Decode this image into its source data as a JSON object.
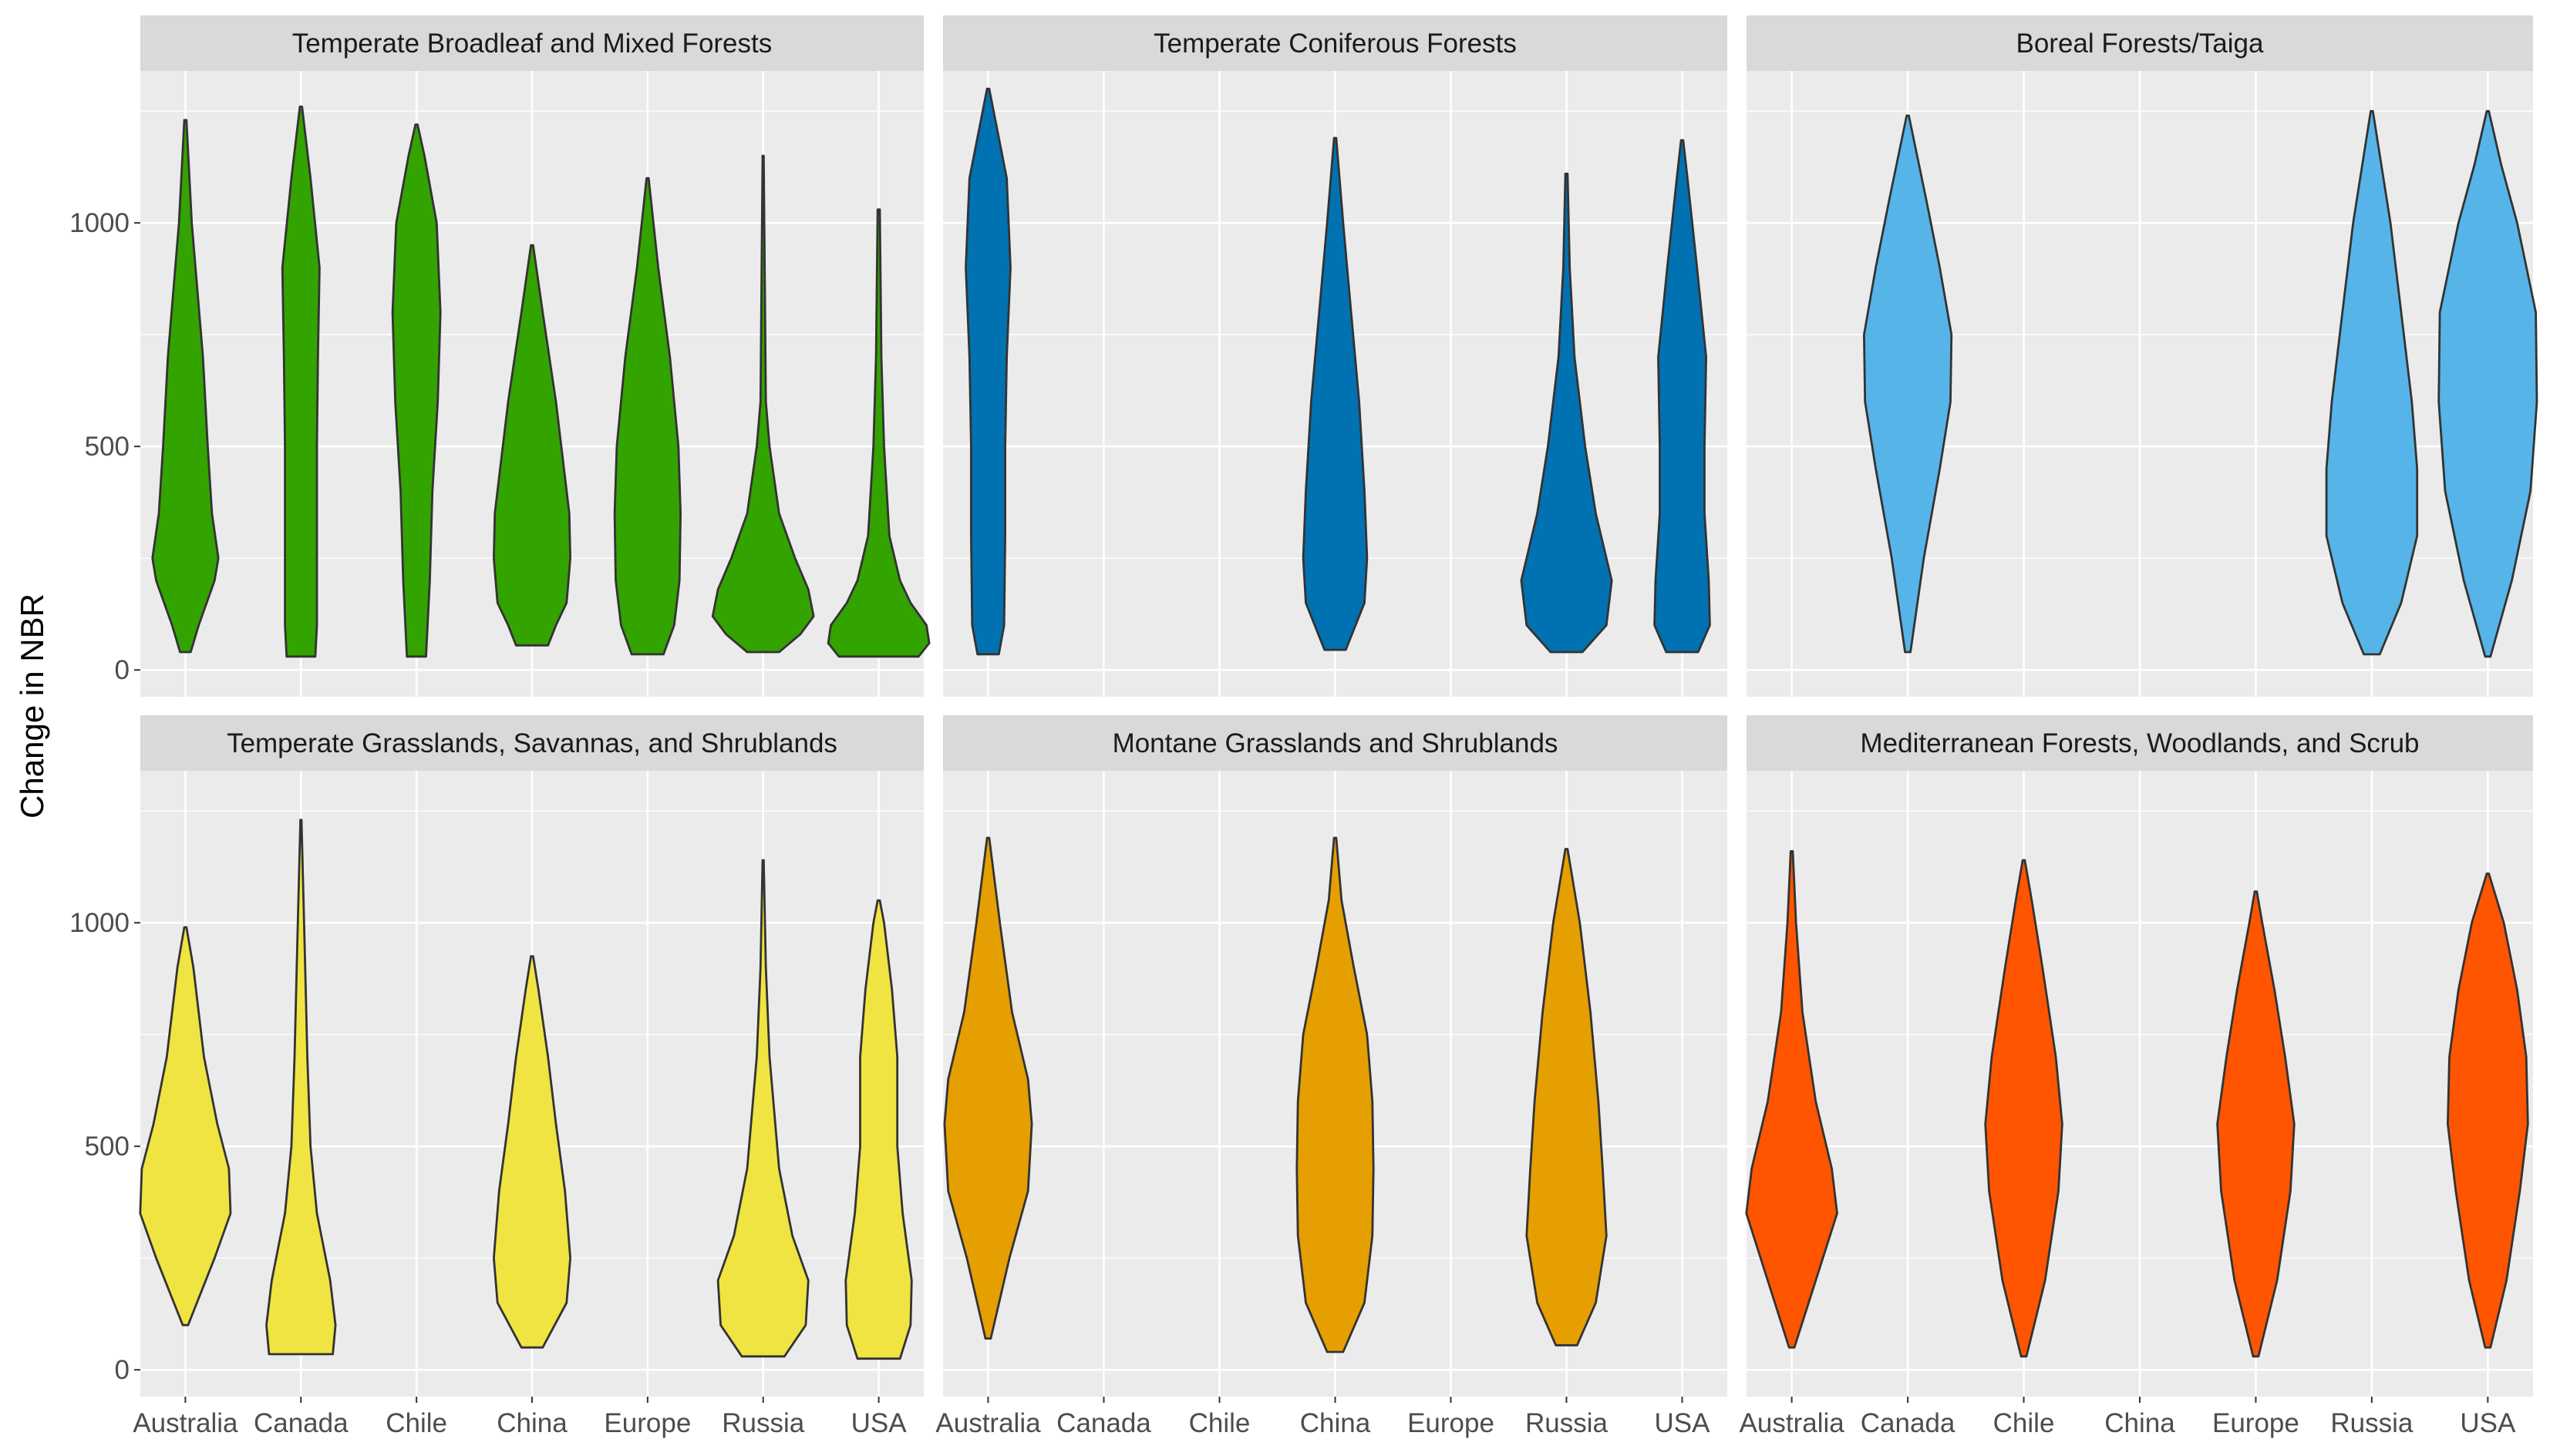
{
  "chart_data": {
    "type": "violin",
    "ylabel": "Change in NBR",
    "xlabel": "",
    "ylim": [
      -60,
      1340
    ],
    "y_ticks": [
      0,
      500,
      1000
    ],
    "categories": [
      "Australia",
      "Canada",
      "Chile",
      "China",
      "Europe",
      "Russia",
      "USA"
    ],
    "panel_background": "#ebebeb",
    "strip_background": "#d9d9d9",
    "outline_color": "#333333",
    "panels": [
      {
        "title": "Temperate Broadleaf and Mixed Forests",
        "fill": "#33a300",
        "violins": [
          {
            "category": "Australia",
            "profile": [
              [
                40,
                0.1
              ],
              [
                100,
                0.25
              ],
              [
                200,
                0.55
              ],
              [
                250,
                0.62
              ],
              [
                350,
                0.5
              ],
              [
                500,
                0.42
              ],
              [
                700,
                0.33
              ],
              [
                1000,
                0.12
              ],
              [
                1230,
                0.02
              ]
            ]
          },
          {
            "category": "Canada",
            "profile": [
              [
                30,
                0.27
              ],
              [
                100,
                0.3
              ],
              [
                300,
                0.3
              ],
              [
                500,
                0.3
              ],
              [
                700,
                0.32
              ],
              [
                900,
                0.35
              ],
              [
                1100,
                0.18
              ],
              [
                1260,
                0.02
              ]
            ]
          },
          {
            "category": "Chile",
            "profile": [
              [
                30,
                0.18
              ],
              [
                200,
                0.25
              ],
              [
                400,
                0.3
              ],
              [
                600,
                0.4
              ],
              [
                800,
                0.45
              ],
              [
                1000,
                0.38
              ],
              [
                1150,
                0.15
              ],
              [
                1220,
                0.02
              ]
            ]
          },
          {
            "category": "China",
            "profile": [
              [
                55,
                0.3
              ],
              [
                100,
                0.45
              ],
              [
                150,
                0.65
              ],
              [
                250,
                0.72
              ],
              [
                350,
                0.7
              ],
              [
                450,
                0.6
              ],
              [
                600,
                0.45
              ],
              [
                800,
                0.2
              ],
              [
                950,
                0.02
              ]
            ]
          },
          {
            "category": "Europe",
            "profile": [
              [
                35,
                0.3
              ],
              [
                100,
                0.5
              ],
              [
                200,
                0.6
              ],
              [
                350,
                0.62
              ],
              [
                500,
                0.58
              ],
              [
                700,
                0.42
              ],
              [
                900,
                0.2
              ],
              [
                1100,
                0.02
              ]
            ]
          },
          {
            "category": "Russia",
            "profile": [
              [
                40,
                0.3
              ],
              [
                80,
                0.7
              ],
              [
                120,
                0.95
              ],
              [
                180,
                0.85
              ],
              [
                250,
                0.6
              ],
              [
                350,
                0.3
              ],
              [
                500,
                0.12
              ],
              [
                600,
                0.05
              ],
              [
                1150,
                0.01
              ]
            ]
          },
          {
            "category": "USA",
            "profile": [
              [
                30,
                0.75
              ],
              [
                60,
                0.95
              ],
              [
                100,
                0.9
              ],
              [
                150,
                0.6
              ],
              [
                200,
                0.4
              ],
              [
                300,
                0.2
              ],
              [
                500,
                0.1
              ],
              [
                700,
                0.05
              ],
              [
                1030,
                0.02
              ]
            ]
          }
        ]
      },
      {
        "title": "Temperate Coniferous Forests",
        "fill": "#0072b2",
        "violins": [
          {
            "category": "Australia",
            "profile": [
              [
                35,
                0.2
              ],
              [
                100,
                0.3
              ],
              [
                300,
                0.32
              ],
              [
                500,
                0.32
              ],
              [
                700,
                0.35
              ],
              [
                900,
                0.42
              ],
              [
                1100,
                0.35
              ],
              [
                1300,
                0.02
              ]
            ]
          },
          {
            "category": "China",
            "profile": [
              [
                45,
                0.2
              ],
              [
                150,
                0.55
              ],
              [
                250,
                0.6
              ],
              [
                400,
                0.55
              ],
              [
                600,
                0.45
              ],
              [
                800,
                0.3
              ],
              [
                1000,
                0.15
              ],
              [
                1190,
                0.02
              ]
            ]
          },
          {
            "category": "Russia",
            "profile": [
              [
                40,
                0.3
              ],
              [
                100,
                0.75
              ],
              [
                200,
                0.85
              ],
              [
                350,
                0.55
              ],
              [
                500,
                0.35
              ],
              [
                700,
                0.15
              ],
              [
                900,
                0.06
              ],
              [
                1110,
                0.02
              ]
            ]
          },
          {
            "category": "USA",
            "profile": [
              [
                40,
                0.3
              ],
              [
                100,
                0.52
              ],
              [
                200,
                0.5
              ],
              [
                350,
                0.42
              ],
              [
                500,
                0.42
              ],
              [
                700,
                0.45
              ],
              [
                900,
                0.28
              ],
              [
                1100,
                0.1
              ],
              [
                1185,
                0.02
              ]
            ]
          }
        ]
      },
      {
        "title": "Boreal Forests/Taiga",
        "fill": "#56b4e9",
        "violins": [
          {
            "category": "Canada",
            "profile": [
              [
                40,
                0.05
              ],
              [
                250,
                0.3
              ],
              [
                450,
                0.6
              ],
              [
                600,
                0.8
              ],
              [
                750,
                0.82
              ],
              [
                900,
                0.6
              ],
              [
                1050,
                0.35
              ],
              [
                1240,
                0.02
              ]
            ]
          },
          {
            "category": "Russia",
            "profile": [
              [
                35,
                0.15
              ],
              [
                150,
                0.55
              ],
              [
                300,
                0.85
              ],
              [
                450,
                0.85
              ],
              [
                600,
                0.75
              ],
              [
                800,
                0.55
              ],
              [
                1000,
                0.35
              ],
              [
                1250,
                0.02
              ]
            ]
          },
          {
            "category": "USA",
            "profile": [
              [
                30,
                0.05
              ],
              [
                200,
                0.45
              ],
              [
                400,
                0.8
              ],
              [
                600,
                0.92
              ],
              [
                800,
                0.9
              ],
              [
                1000,
                0.55
              ],
              [
                1130,
                0.25
              ],
              [
                1250,
                0.02
              ]
            ]
          }
        ]
      },
      {
        "title": "Temperate Grasslands, Savannas, and Shrublands",
        "fill": "#f0e442",
        "violins": [
          {
            "category": "Australia",
            "profile": [
              [
                100,
                0.05
              ],
              [
                250,
                0.55
              ],
              [
                350,
                0.85
              ],
              [
                450,
                0.82
              ],
              [
                550,
                0.6
              ],
              [
                700,
                0.35
              ],
              [
                900,
                0.15
              ],
              [
                990,
                0.02
              ]
            ]
          },
          {
            "category": "Canada",
            "profile": [
              [
                35,
                0.6
              ],
              [
                100,
                0.65
              ],
              [
                200,
                0.55
              ],
              [
                350,
                0.3
              ],
              [
                500,
                0.18
              ],
              [
                700,
                0.12
              ],
              [
                900,
                0.08
              ],
              [
                1230,
                0.01
              ]
            ]
          },
          {
            "category": "China",
            "profile": [
              [
                50,
                0.2
              ],
              [
                150,
                0.65
              ],
              [
                250,
                0.72
              ],
              [
                400,
                0.62
              ],
              [
                550,
                0.45
              ],
              [
                700,
                0.3
              ],
              [
                850,
                0.12
              ],
              [
                925,
                0.02
              ]
            ]
          },
          {
            "category": "Russia",
            "profile": [
              [
                30,
                0.4
              ],
              [
                100,
                0.8
              ],
              [
                200,
                0.85
              ],
              [
                300,
                0.55
              ],
              [
                450,
                0.3
              ],
              [
                700,
                0.12
              ],
              [
                900,
                0.05
              ],
              [
                1140,
                0.01
              ]
            ]
          },
          {
            "category": "USA",
            "profile": [
              [
                25,
                0.4
              ],
              [
                100,
                0.6
              ],
              [
                200,
                0.62
              ],
              [
                350,
                0.45
              ],
              [
                500,
                0.35
              ],
              [
                700,
                0.35
              ],
              [
                850,
                0.25
              ],
              [
                1000,
                0.1
              ],
              [
                1050,
                0.02
              ]
            ]
          }
        ]
      },
      {
        "title": "Montane Grasslands and Shrublands",
        "fill": "#e69f00",
        "violins": [
          {
            "category": "Australia",
            "profile": [
              [
                70,
                0.05
              ],
              [
                250,
                0.4
              ],
              [
                400,
                0.75
              ],
              [
                550,
                0.82
              ],
              [
                650,
                0.75
              ],
              [
                800,
                0.45
              ],
              [
                1000,
                0.22
              ],
              [
                1190,
                0.02
              ]
            ]
          },
          {
            "category": "China",
            "profile": [
              [
                40,
                0.15
              ],
              [
                150,
                0.55
              ],
              [
                300,
                0.7
              ],
              [
                450,
                0.72
              ],
              [
                600,
                0.7
              ],
              [
                750,
                0.6
              ],
              [
                900,
                0.35
              ],
              [
                1050,
                0.12
              ],
              [
                1190,
                0.02
              ]
            ]
          },
          {
            "category": "Russia",
            "profile": [
              [
                55,
                0.2
              ],
              [
                150,
                0.55
              ],
              [
                300,
                0.75
              ],
              [
                450,
                0.68
              ],
              [
                600,
                0.6
              ],
              [
                800,
                0.45
              ],
              [
                1000,
                0.25
              ],
              [
                1165,
                0.02
              ]
            ]
          }
        ]
      },
      {
        "title": "Mediterranean Forests, Woodlands, and Scrub",
        "fill": "#ff5500",
        "violins": [
          {
            "category": "Australia",
            "profile": [
              [
                50,
                0.05
              ],
              [
                200,
                0.45
              ],
              [
                350,
                0.85
              ],
              [
                450,
                0.75
              ],
              [
                600,
                0.45
              ],
              [
                800,
                0.2
              ],
              [
                1000,
                0.08
              ],
              [
                1160,
                0.02
              ]
            ]
          },
          {
            "category": "Chile",
            "profile": [
              [
                30,
                0.05
              ],
              [
                200,
                0.4
              ],
              [
                400,
                0.65
              ],
              [
                550,
                0.72
              ],
              [
                700,
                0.6
              ],
              [
                900,
                0.35
              ],
              [
                1050,
                0.15
              ],
              [
                1140,
                0.02
              ]
            ]
          },
          {
            "category": "Europe",
            "profile": [
              [
                30,
                0.05
              ],
              [
                200,
                0.4
              ],
              [
                400,
                0.65
              ],
              [
                550,
                0.72
              ],
              [
                700,
                0.55
              ],
              [
                850,
                0.35
              ],
              [
                1000,
                0.12
              ],
              [
                1070,
                0.02
              ]
            ]
          },
          {
            "category": "USA",
            "profile": [
              [
                50,
                0.05
              ],
              [
                200,
                0.35
              ],
              [
                400,
                0.6
              ],
              [
                550,
                0.75
              ],
              [
                700,
                0.72
              ],
              [
                850,
                0.55
              ],
              [
                1000,
                0.3
              ],
              [
                1110,
                0.02
              ]
            ]
          }
        ]
      }
    ]
  }
}
